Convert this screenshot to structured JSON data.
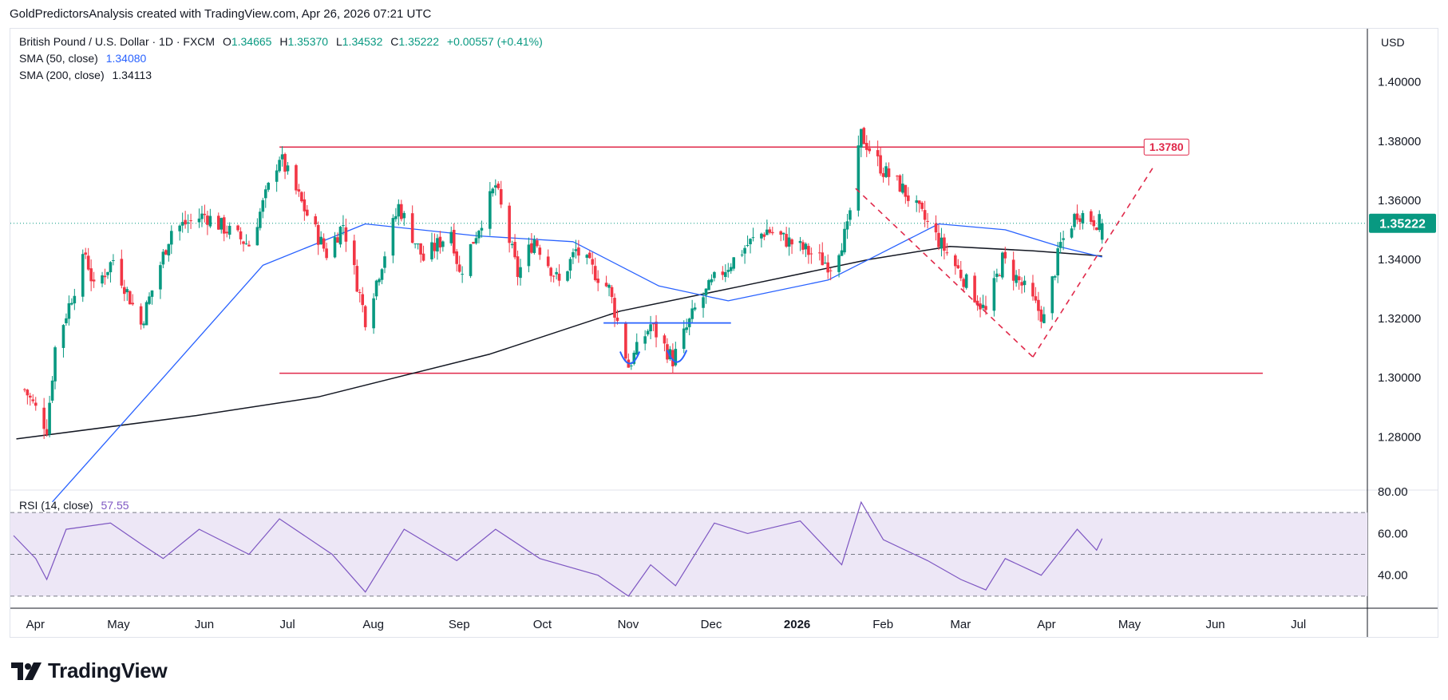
{
  "header": {
    "text": "GoldPredictorsAnalysis created with TradingView.com, Apr 26, 2026 07:21 UTC"
  },
  "legend": {
    "symbol": "British Pound / U.S. Dollar · 1D · FXCM",
    "open_label": "O",
    "open": "1.34665",
    "high_label": "H",
    "high": "1.35370",
    "low_label": "L",
    "low": "1.34532",
    "close_label": "C",
    "close": "1.35222",
    "change": "+0.00557 (+0.41%)",
    "sma50_label": "SMA (50, close)",
    "sma50_value": "1.34080",
    "sma200_label": "SMA (200, close)",
    "sma200_value": "1.34113",
    "rsi_label": "RSI (14, close)",
    "rsi_value": "57.55"
  },
  "axis": {
    "currency": "USD",
    "last_price_badge": "1.35222",
    "resistance_badge": "1.3780"
  },
  "brand": {
    "name": "TradingView"
  },
  "colors": {
    "up": "#089981",
    "down": "#f23645",
    "sma50": "#2962ff",
    "sma200": "#131722",
    "rsi": "#7e57c2",
    "rsi_band": "#ede7f6",
    "resistance": "#e0294a",
    "pattern": "#2962ff"
  },
  "chart_data": {
    "type": "candlestick",
    "price_axis": {
      "ticks": [
        1.28,
        1.3,
        1.32,
        1.34,
        1.36,
        1.38,
        1.4
      ],
      "range": [
        1.262,
        1.418
      ]
    },
    "rsi_axis": {
      "ticks": [
        40,
        60,
        80
      ],
      "bands": [
        30,
        50,
        70
      ],
      "range": [
        25,
        80
      ]
    },
    "time_axis": {
      "labels": [
        "Apr",
        "May",
        "Jun",
        "Jul",
        "Aug",
        "Sep",
        "Oct",
        "Nov",
        "Dec",
        "2026",
        "Feb",
        "Mar",
        "Apr",
        "May",
        "Jun",
        "Jul"
      ],
      "bold": [
        "2026"
      ]
    },
    "anchors": [
      [
        "2025-03-31",
        1.296
      ],
      [
        "2025-04-08",
        1.283
      ],
      [
        "2025-04-11",
        1.31
      ],
      [
        "2025-04-22",
        1.342
      ],
      [
        "2025-04-25",
        1.33
      ],
      [
        "2025-05-02",
        1.34
      ],
      [
        "2025-05-12",
        1.318
      ],
      [
        "2025-05-23",
        1.35
      ],
      [
        "2025-06-04",
        1.355
      ],
      [
        "2025-06-20",
        1.345
      ],
      [
        "2025-07-01",
        1.375
      ],
      [
        "2025-07-10",
        1.357
      ],
      [
        "2025-07-18",
        1.342
      ],
      [
        "2025-07-24",
        1.352
      ],
      [
        "2025-08-01",
        1.32
      ],
      [
        "2025-08-13",
        1.358
      ],
      [
        "2025-08-22",
        1.34
      ],
      [
        "2025-09-01",
        1.35
      ],
      [
        "2025-09-04",
        1.335
      ],
      [
        "2025-09-17",
        1.365
      ],
      [
        "2025-09-25",
        1.335
      ],
      [
        "2025-10-01",
        1.347
      ],
      [
        "2025-10-10",
        1.332
      ],
      [
        "2025-10-16",
        1.343
      ],
      [
        "2025-10-28",
        1.33
      ],
      [
        "2025-11-04",
        1.304
      ],
      [
        "2025-11-12",
        1.318
      ],
      [
        "2025-11-20",
        1.306
      ],
      [
        "2025-11-28",
        1.323
      ],
      [
        "2025-12-05",
        1.333
      ],
      [
        "2025-12-17",
        1.345
      ],
      [
        "2025-12-24",
        1.35
      ],
      [
        "2026-01-07",
        1.343
      ],
      [
        "2026-01-16",
        1.338
      ],
      [
        "2026-01-22",
        1.35
      ],
      [
        "2026-01-27",
        1.382
      ],
      [
        "2026-02-04",
        1.37
      ],
      [
        "2026-02-10",
        1.365
      ],
      [
        "2026-02-20",
        1.352
      ],
      [
        "2026-03-04",
        1.335
      ],
      [
        "2026-03-13",
        1.322
      ],
      [
        "2026-03-19",
        1.34
      ],
      [
        "2026-03-27",
        1.33
      ],
      [
        "2026-04-03",
        1.32
      ],
      [
        "2026-04-09",
        1.345
      ],
      [
        "2026-04-15",
        1.356
      ],
      [
        "2026-04-24",
        1.352
      ]
    ],
    "last_bar": {
      "date": "2026-04-24",
      "open": 1.34665,
      "high": 1.3537,
      "low": 1.34532,
      "close": 1.35222
    },
    "sma50": [
      [
        "2025-04-10",
        1.258
      ],
      [
        "2025-05-20",
        1.3
      ],
      [
        "2025-06-25",
        1.338
      ],
      [
        "2025-08-01",
        1.352
      ],
      [
        "2025-09-10",
        1.348
      ],
      [
        "2025-10-15",
        1.346
      ],
      [
        "2025-11-15",
        1.331
      ],
      [
        "2025-12-10",
        1.326
      ],
      [
        "2026-01-15",
        1.333
      ],
      [
        "2026-02-03",
        1.342
      ],
      [
        "2026-02-24",
        1.352
      ],
      [
        "2026-03-20",
        1.35
      ],
      [
        "2026-04-10",
        1.344
      ],
      [
        "2026-04-24",
        1.3408
      ]
    ],
    "sma200": [
      [
        "2025-03-28",
        1.2793
      ],
      [
        "2025-06-01",
        1.2872
      ],
      [
        "2025-07-15",
        1.2935
      ],
      [
        "2025-09-15",
        1.308
      ],
      [
        "2025-11-01",
        1.3225
      ],
      [
        "2025-12-15",
        1.331
      ],
      [
        "2026-01-30",
        1.34
      ],
      [
        "2026-02-28",
        1.3444
      ],
      [
        "2026-03-30",
        1.3429
      ],
      [
        "2026-04-24",
        1.34113
      ]
    ],
    "rsi": [
      [
        "2025-03-27",
        59
      ],
      [
        "2025-04-04",
        48
      ],
      [
        "2025-04-08",
        38
      ],
      [
        "2025-04-15",
        62
      ],
      [
        "2025-05-01",
        65
      ],
      [
        "2025-05-12",
        55
      ],
      [
        "2025-05-20",
        48
      ],
      [
        "2025-06-02",
        62
      ],
      [
        "2025-06-20",
        50
      ],
      [
        "2025-07-01",
        67
      ],
      [
        "2025-07-20",
        50
      ],
      [
        "2025-08-01",
        32
      ],
      [
        "2025-08-15",
        62
      ],
      [
        "2025-09-03",
        47
      ],
      [
        "2025-09-17",
        62
      ],
      [
        "2025-10-03",
        48
      ],
      [
        "2025-10-24",
        40
      ],
      [
        "2025-11-04",
        30
      ],
      [
        "2025-11-12",
        45
      ],
      [
        "2025-11-21",
        35
      ],
      [
        "2025-12-05",
        65
      ],
      [
        "2025-12-17",
        60
      ],
      [
        "2026-01-05",
        66
      ],
      [
        "2026-01-20",
        45
      ],
      [
        "2026-01-27",
        75
      ],
      [
        "2026-02-04",
        57
      ],
      [
        "2026-02-20",
        47
      ],
      [
        "2026-03-04",
        38
      ],
      [
        "2026-03-13",
        33
      ],
      [
        "2026-03-20",
        48
      ],
      [
        "2026-04-02",
        40
      ],
      [
        "2026-04-15",
        62
      ],
      [
        "2026-04-22",
        52
      ],
      [
        "2026-04-24",
        57.55
      ]
    ],
    "resistance": {
      "level": 1.378,
      "from": "2025-07-01",
      "to": "2026-05-25"
    },
    "support": {
      "level": 1.3015,
      "from": "2025-07-01",
      "to": "2026-06-21"
    },
    "neckline": {
      "level": 1.3185,
      "from": "2025-10-26",
      "to": "2025-12-11"
    },
    "dashed_lines": [
      {
        "from": [
          "2026-01-25",
          1.364
        ],
        "to": [
          "2026-03-30",
          1.307
        ]
      },
      {
        "from": [
          "2026-03-30",
          1.307
        ],
        "to": [
          "2026-05-13",
          1.372
        ]
      }
    ],
    "bottom_arcs": [
      {
        "from": "2025-11-01",
        "to": "2025-11-08",
        "level": 1.3045
      },
      {
        "from": "2025-11-18",
        "to": "2025-11-25",
        "level": 1.305
      }
    ]
  }
}
